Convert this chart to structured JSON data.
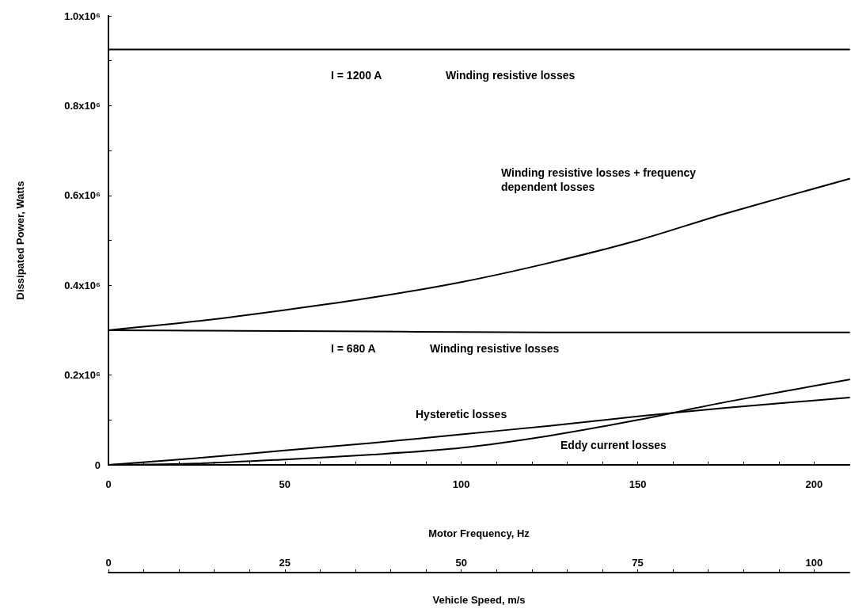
{
  "chart_data": {
    "type": "line",
    "xlabel": "Motor Frequency, Hz",
    "ylabel": "Dissipated Power, Watts",
    "x2label": "Vehicle Speed, m/s",
    "x": [
      0,
      25,
      50,
      75,
      100,
      125,
      150,
      175,
      210
    ],
    "series": [
      {
        "color": "#000000",
        "values": [
          925000,
          925000,
          925000,
          925000,
          925000,
          925000,
          925000,
          925000,
          925000
        ]
      },
      {
        "color": "#000000",
        "values": [
          300000,
          320000,
          345000,
          373000,
          407000,
          450000,
          500000,
          560000,
          637000
        ]
      },
      {
        "color": "#000000",
        "values": [
          300000,
          299000,
          298000,
          297000,
          296000,
          295000,
          295000,
          295000,
          295000
        ]
      },
      {
        "color": "#000000",
        "values": [
          0,
          15000,
          32000,
          49000,
          68000,
          87000,
          108000,
          127000,
          150000
        ]
      },
      {
        "color": "#000000",
        "values": [
          0,
          3000,
          12000,
          23000,
          38000,
          65000,
          100000,
          140000,
          190000
        ]
      }
    ],
    "xlim": [
      0,
      210
    ],
    "xticks": [
      0,
      {
        "value": 10,
        "label": null
      },
      {
        "value": 20,
        "label": null
      },
      {
        "value": 30,
        "label": null
      },
      {
        "value": 40,
        "label": null
      },
      50,
      {
        "value": 60,
        "label": null
      },
      {
        "value": 70,
        "label": null
      },
      {
        "value": 80,
        "label": null
      },
      {
        "value": 90,
        "label": null
      },
      100,
      {
        "value": 110,
        "label": null
      },
      {
        "value": 120,
        "label": null
      },
      {
        "value": 130,
        "label": null
      },
      {
        "value": 140,
        "label": null
      },
      150,
      {
        "value": 160,
        "label": null
      },
      {
        "value": 170,
        "label": null
      },
      {
        "value": 180,
        "label": null
      },
      {
        "value": 190,
        "label": null
      },
      200
    ],
    "x2lim": [
      0,
      105
    ],
    "x2ticks": [
      0,
      {
        "value": 5,
        "label": null
      },
      {
        "value": 10,
        "label": null
      },
      {
        "value": 15,
        "label": null
      },
      {
        "value": 20,
        "label": null
      },
      25,
      {
        "value": 30,
        "label": null
      },
      {
        "value": 35,
        "label": null
      },
      {
        "value": 40,
        "label": null
      },
      {
        "value": 45,
        "label": null
      },
      50,
      {
        "value": 55,
        "label": null
      },
      {
        "value": 60,
        "label": null
      },
      {
        "value": 65,
        "label": null
      },
      {
        "value": 70,
        "label": null
      },
      75,
      {
        "value": 80,
        "label": null
      },
      {
        "value": 85,
        "label": null
      },
      {
        "value": 90,
        "label": null
      },
      {
        "value": 95,
        "label": null
      },
      100
    ],
    "ylim": [
      0,
      1000000
    ],
    "yticks": [
      0,
      {
        "value": 100000,
        "label": null
      },
      {
        "value": 200000,
        "label": "0.2x10⁶"
      },
      {
        "value": 300000,
        "label": null
      },
      {
        "value": 400000,
        "label": "0.4x10⁶"
      },
      {
        "value": 500000,
        "label": null
      },
      {
        "value": 600000,
        "label": "0.6x10⁶"
      },
      {
        "value": 700000,
        "label": null
      },
      {
        "value": 800000,
        "label": "0.8x10⁶"
      },
      {
        "value": 900000,
        "label": null
      },
      {
        "value": 1000000,
        "label": "1.0x10⁶"
      }
    ],
    "grid": false,
    "marker": "none",
    "line_style": "solid",
    "annotations": [
      "I = 1200 A",
      "Winding resistive losses",
      "Winding resistive losses + frequency dependent losses",
      "I = 680 A",
      "Winding resistive losses",
      "Hysteretic losses",
      "Eddy current losses"
    ]
  }
}
